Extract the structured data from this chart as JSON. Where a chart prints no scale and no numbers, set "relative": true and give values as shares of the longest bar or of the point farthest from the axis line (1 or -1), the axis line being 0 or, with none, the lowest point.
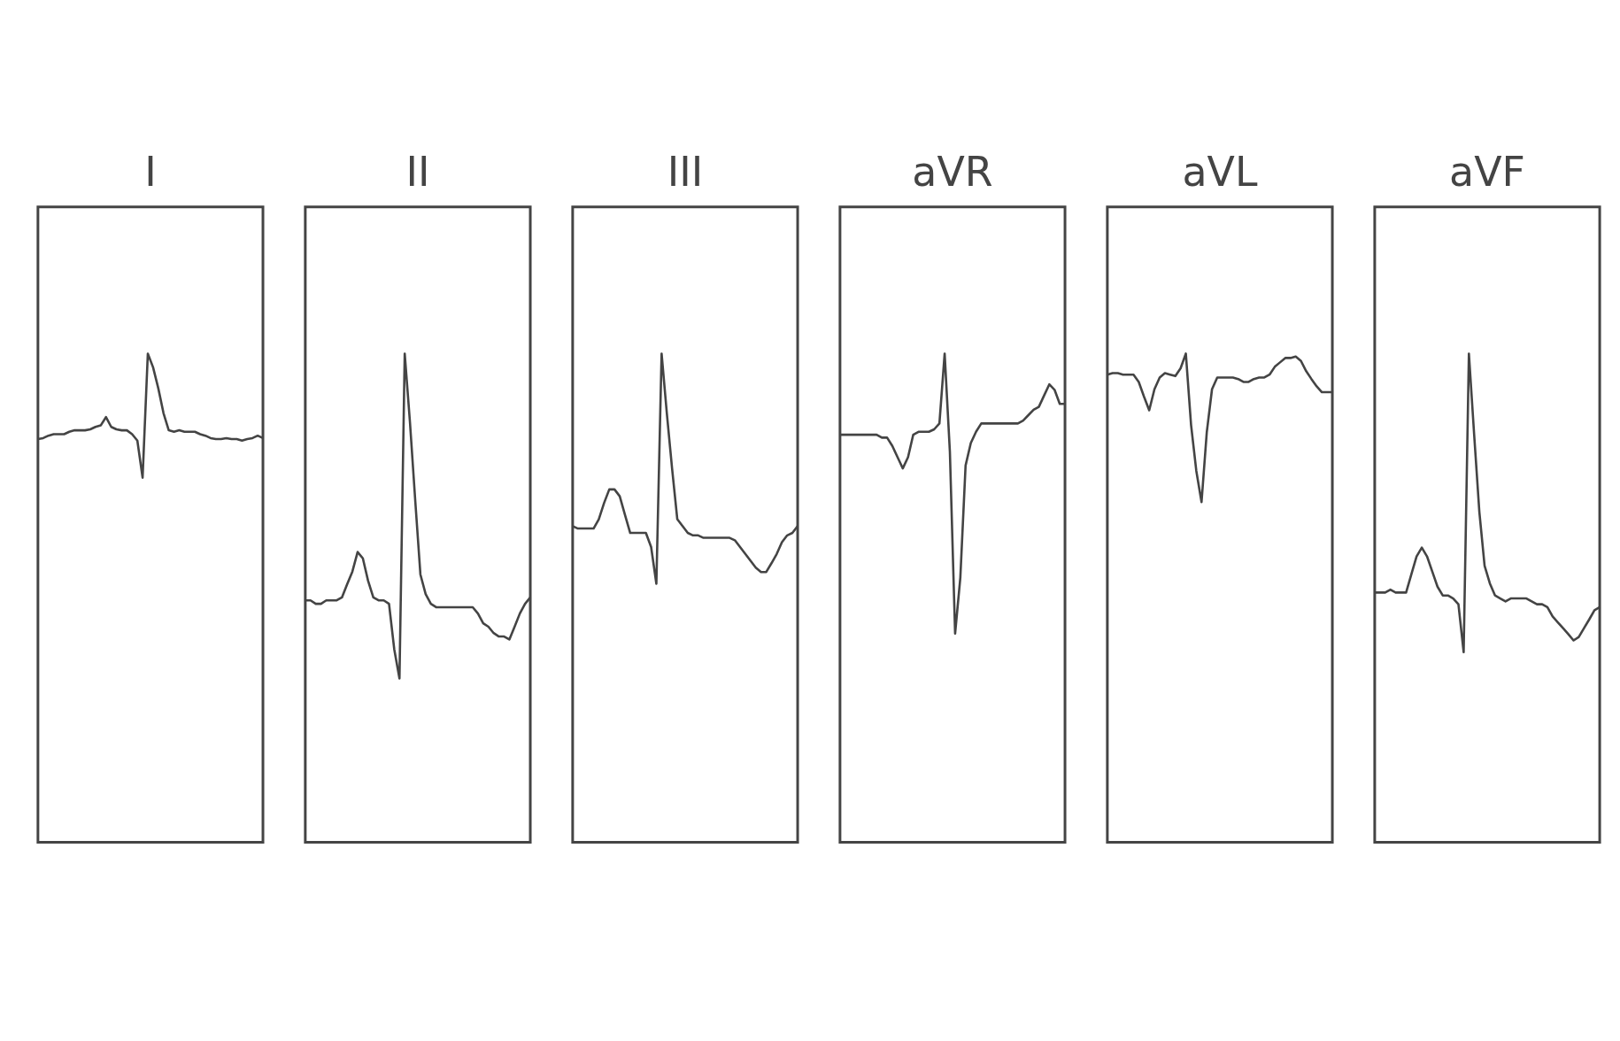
{
  "chart_data": [
    {
      "type": "line",
      "title": "I",
      "relative": true,
      "categories": [
        null,
        null,
        null,
        null,
        null,
        null,
        null,
        null,
        null,
        null,
        null,
        null,
        null,
        null,
        null,
        null,
        null,
        null,
        null,
        null,
        null,
        null,
        null,
        null,
        null,
        null,
        null,
        null,
        null,
        null,
        null,
        null,
        null,
        null,
        null,
        null,
        null,
        null,
        null,
        null,
        null,
        null,
        null,
        null
      ],
      "series": [
        {
          "color": "#444444",
          "values": [
            0.825,
            0.827,
            0.832,
            0.835,
            0.835,
            0.835,
            0.84,
            0.843,
            0.843,
            0.843,
            0.845,
            0.85,
            0.853,
            0.87,
            0.85,
            0.845,
            0.843,
            0.843,
            0.835,
            0.822,
            0.746,
            1,
            0.972,
            0.929,
            0.878,
            0.843,
            0.84,
            0.843,
            0.84,
            0.84,
            0.84,
            0.835,
            0.832,
            0.827,
            0.825,
            0.825,
            0.827,
            0.825,
            0.825,
            0.822,
            0.825,
            0.827,
            0.832,
            0.827
          ]
        }
      ]
    },
    {
      "type": "line",
      "title": "II",
      "relative": true,
      "categories": [
        null,
        null,
        null,
        null,
        null,
        null,
        null,
        null,
        null,
        null,
        null,
        null,
        null,
        null,
        null,
        null,
        null,
        null,
        null,
        null,
        null,
        null,
        null,
        null,
        null,
        null,
        null,
        null,
        null,
        null,
        null,
        null,
        null,
        null,
        null,
        null,
        null,
        null,
        null,
        null,
        null,
        null,
        null,
        null
      ],
      "series": [
        {
          "color": "#444444",
          "values": [
            0.495,
            0.495,
            0.488,
            0.488,
            0.495,
            0.495,
            0.495,
            0.501,
            0.528,
            0.554,
            0.594,
            0.581,
            0.535,
            0.501,
            0.495,
            0.495,
            0.488,
            0.395,
            0.335,
            1,
            0.86,
            0.701,
            0.548,
            0.508,
            0.488,
            0.481,
            0.481,
            0.481,
            0.481,
            0.481,
            0.481,
            0.481,
            0.481,
            0.468,
            0.448,
            0.441,
            0.428,
            0.421,
            0.421,
            0.415,
            0.441,
            0.468,
            0.488,
            0.501
          ]
        }
      ]
    },
    {
      "type": "line",
      "title": "III",
      "relative": true,
      "categories": [
        null,
        null,
        null,
        null,
        null,
        null,
        null,
        null,
        null,
        null,
        null,
        null,
        null,
        null,
        null,
        null,
        null,
        null,
        null,
        null,
        null,
        null,
        null,
        null,
        null,
        null,
        null,
        null,
        null,
        null,
        null,
        null,
        null,
        null,
        null,
        null,
        null,
        null,
        null,
        null,
        null,
        null,
        null,
        null
      ],
      "series": [
        {
          "color": "#444444",
          "values": [
            0.647,
            0.642,
            0.642,
            0.642,
            0.642,
            0.661,
            0.694,
            0.722,
            0.722,
            0.708,
            0.67,
            0.633,
            0.633,
            0.633,
            0.633,
            0.604,
            0.529,
            1,
            0.878,
            0.765,
            0.661,
            0.647,
            0.633,
            0.628,
            0.628,
            0.623,
            0.623,
            0.623,
            0.623,
            0.623,
            0.623,
            0.618,
            0.604,
            0.59,
            0.576,
            0.562,
            0.553,
            0.553,
            0.571,
            0.59,
            0.614,
            0.628,
            0.633,
            0.647
          ]
        }
      ]
    },
    {
      "type": "line",
      "title": "aVR",
      "relative": true,
      "categories": [
        null,
        null,
        null,
        null,
        null,
        null,
        null,
        null,
        null,
        null,
        null,
        null,
        null,
        null,
        null,
        null,
        null,
        null,
        null,
        null,
        null,
        null,
        null,
        null,
        null,
        null,
        null,
        null,
        null,
        null,
        null,
        null,
        null,
        null,
        null,
        null,
        null,
        null,
        null,
        null,
        null,
        null,
        null,
        null
      ],
      "series": [
        {
          "color": "#444444",
          "values": [
            0.834,
            0.834,
            0.834,
            0.834,
            0.834,
            0.834,
            0.834,
            0.834,
            0.828,
            0.828,
            0.811,
            0.788,
            0.765,
            0.788,
            0.834,
            0.84,
            0.84,
            0.84,
            0.845,
            0.857,
            1,
            0.799,
            0.427,
            0.542,
            0.771,
            0.817,
            0.84,
            0.857,
            0.857,
            0.857,
            0.857,
            0.857,
            0.857,
            0.857,
            0.857,
            0.863,
            0.874,
            0.885,
            0.891,
            0.914,
            0.937,
            0.926,
            0.897,
            0.897
          ]
        }
      ]
    },
    {
      "type": "line",
      "title": "aVL",
      "relative": true,
      "categories": [
        null,
        null,
        null,
        null,
        null,
        null,
        null,
        null,
        null,
        null,
        null,
        null,
        null,
        null,
        null,
        null,
        null,
        null,
        null,
        null,
        null,
        null,
        null,
        null,
        null,
        null,
        null,
        null,
        null,
        null,
        null,
        null,
        null,
        null,
        null,
        null,
        null,
        null,
        null,
        null,
        null,
        null,
        null,
        null
      ],
      "series": [
        {
          "color": "#444444",
          "values": [
            0.957,
            0.96,
            0.96,
            0.957,
            0.957,
            0.957,
            0.942,
            0.912,
            0.884,
            0.927,
            0.951,
            0.96,
            0.957,
            0.954,
            0.97,
            1,
            0.854,
            0.76,
            0.696,
            0.839,
            0.927,
            0.951,
            0.951,
            0.951,
            0.951,
            0.948,
            0.942,
            0.942,
            0.948,
            0.951,
            0.951,
            0.957,
            0.973,
            0.982,
            0.991,
            0.991,
            0.994,
            0.985,
            0.964,
            0.948,
            0.933,
            0.921,
            0.921,
            0.921
          ]
        }
      ]
    },
    {
      "type": "line",
      "title": "aVF",
      "relative": true,
      "categories": [
        null,
        null,
        null,
        null,
        null,
        null,
        null,
        null,
        null,
        null,
        null,
        null,
        null,
        null,
        null,
        null,
        null,
        null,
        null,
        null,
        null,
        null,
        null,
        null,
        null,
        null,
        null,
        null,
        null,
        null,
        null,
        null,
        null,
        null,
        null,
        null,
        null,
        null,
        null,
        null,
        null,
        null,
        null,
        null
      ],
      "series": [
        {
          "color": "#444444",
          "values": [
            0.511,
            0.511,
            0.511,
            0.517,
            0.511,
            0.511,
            0.511,
            0.548,
            0.585,
            0.603,
            0.585,
            0.554,
            0.523,
            0.505,
            0.505,
            0.499,
            0.487,
            0.389,
            1,
            0.835,
            0.676,
            0.566,
            0.53,
            0.505,
            0.499,
            0.493,
            0.499,
            0.499,
            0.499,
            0.499,
            0.493,
            0.487,
            0.487,
            0.481,
            0.462,
            0.45,
            0.438,
            0.426,
            0.413,
            0.42,
            0.438,
            0.456,
            0.475,
            0.481
          ]
        }
      ]
    }
  ]
}
